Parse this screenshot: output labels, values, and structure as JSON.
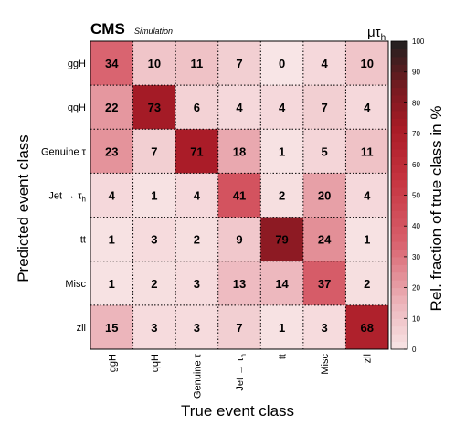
{
  "header": {
    "experiment": "CMS",
    "subtitle": "Simulation",
    "channel": "μτ",
    "channel_sub": "h"
  },
  "chart_data": {
    "type": "heatmap",
    "xlabel": "True event class",
    "ylabel": "Predicted event class",
    "colorbar_label": "Rel. fraction of true class in %",
    "colorbar_range": [
      0,
      100
    ],
    "colorbar_ticks": [
      0,
      10,
      20,
      30,
      40,
      50,
      60,
      70,
      80,
      90,
      100
    ],
    "x_categories": [
      {
        "main": "ggH",
        "sub": ""
      },
      {
        "main": "qqH",
        "sub": ""
      },
      {
        "main": "Genuine τ",
        "sub": ""
      },
      {
        "main": "Jet → τ",
        "sub": "h"
      },
      {
        "main": "tt",
        "sub": ""
      },
      {
        "main": "Misc",
        "sub": ""
      },
      {
        "main": "zll",
        "sub": ""
      }
    ],
    "y_categories": [
      {
        "main": "ggH",
        "sub": ""
      },
      {
        "main": "qqH",
        "sub": ""
      },
      {
        "main": "Genuine τ",
        "sub": ""
      },
      {
        "main": "Jet → τ",
        "sub": "h"
      },
      {
        "main": "tt",
        "sub": ""
      },
      {
        "main": "Misc",
        "sub": ""
      },
      {
        "main": "zll",
        "sub": ""
      }
    ],
    "values": [
      [
        34,
        10,
        11,
        7,
        0,
        4,
        10
      ],
      [
        22,
        73,
        6,
        4,
        4,
        7,
        4
      ],
      [
        23,
        7,
        71,
        18,
        1,
        5,
        11
      ],
      [
        4,
        1,
        4,
        41,
        2,
        20,
        4
      ],
      [
        1,
        3,
        2,
        9,
        79,
        24,
        1
      ],
      [
        1,
        2,
        3,
        13,
        14,
        37,
        2
      ],
      [
        15,
        3,
        3,
        7,
        1,
        3,
        68
      ]
    ],
    "grid": true
  }
}
